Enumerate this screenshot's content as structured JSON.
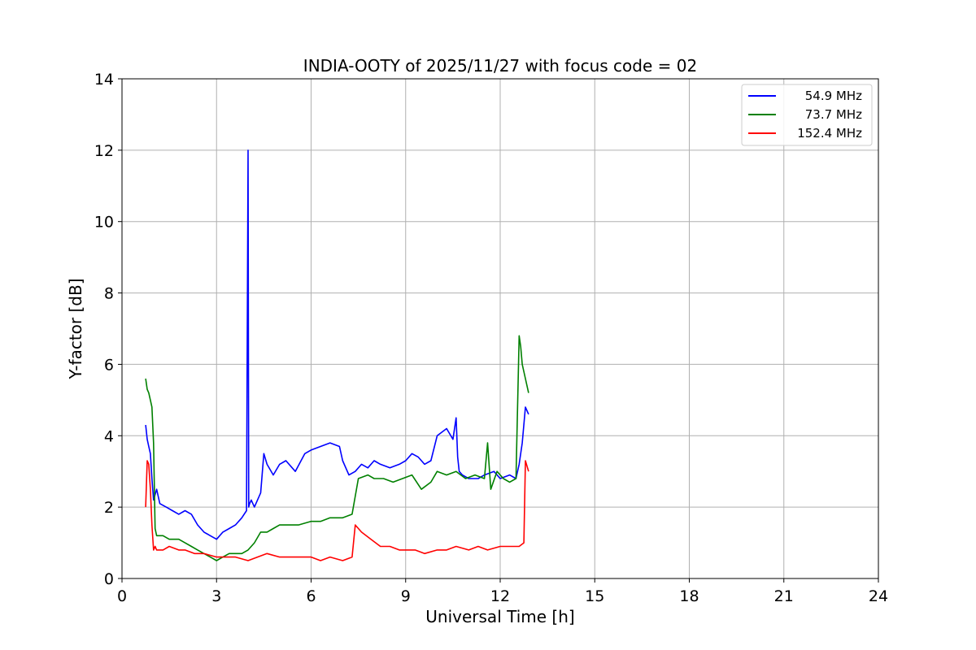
{
  "chart_data": {
    "type": "line",
    "title": "INDIA-OOTY of 2025/11/27 with focus code = 02",
    "xlabel": "Universal Time [h]",
    "ylabel": "Y-factor [dB]",
    "xlim": [
      0,
      24
    ],
    "ylim": [
      0,
      14
    ],
    "xticks": [
      0,
      3,
      6,
      9,
      12,
      15,
      18,
      21,
      24
    ],
    "yticks": [
      0,
      2,
      4,
      6,
      8,
      10,
      12,
      14
    ],
    "grid": true,
    "legend_position": "top-right",
    "series": [
      {
        "name": "54.9 MHz",
        "color": "#0000ff",
        "x": [
          0.75,
          0.8,
          0.85,
          0.9,
          0.95,
          1.0,
          1.1,
          1.2,
          1.4,
          1.6,
          1.8,
          2.0,
          2.2,
          2.4,
          2.6,
          2.8,
          3.0,
          3.2,
          3.4,
          3.6,
          3.8,
          3.95,
          4.0,
          4.02,
          4.05,
          4.1,
          4.2,
          4.4,
          4.5,
          4.6,
          4.8,
          5.0,
          5.2,
          5.5,
          5.8,
          6.0,
          6.3,
          6.6,
          6.9,
          7.0,
          7.2,
          7.4,
          7.6,
          7.8,
          8.0,
          8.2,
          8.5,
          8.8,
          9.0,
          9.2,
          9.4,
          9.6,
          9.8,
          10.0,
          10.3,
          10.5,
          10.6,
          10.65,
          10.7,
          10.8,
          11.0,
          11.3,
          11.5,
          11.8,
          12.0,
          12.3,
          12.5,
          12.6,
          12.7,
          12.8,
          12.9
        ],
        "y": [
          4.3,
          3.9,
          3.7,
          3.5,
          2.8,
          2.2,
          2.5,
          2.1,
          2.0,
          1.9,
          1.8,
          1.9,
          1.8,
          1.5,
          1.3,
          1.2,
          1.1,
          1.3,
          1.4,
          1.5,
          1.7,
          1.9,
          12.0,
          2.0,
          2.1,
          2.2,
          2.0,
          2.4,
          3.5,
          3.2,
          2.9,
          3.2,
          3.3,
          3.0,
          3.5,
          3.6,
          3.7,
          3.8,
          3.7,
          3.3,
          2.9,
          3.0,
          3.2,
          3.1,
          3.3,
          3.2,
          3.1,
          3.2,
          3.3,
          3.5,
          3.4,
          3.2,
          3.3,
          4.0,
          4.2,
          3.9,
          4.5,
          3.4,
          3.0,
          2.9,
          2.8,
          2.8,
          2.9,
          3.0,
          2.8,
          2.9,
          2.8,
          3.2,
          3.8,
          4.8,
          4.6
        ]
      },
      {
        "name": "73.7 MHz",
        "color": "#008000",
        "x": [
          0.75,
          0.8,
          0.85,
          0.9,
          0.95,
          1.0,
          1.05,
          1.1,
          1.3,
          1.5,
          1.8,
          2.0,
          2.2,
          2.4,
          2.6,
          2.8,
          3.0,
          3.2,
          3.4,
          3.6,
          3.8,
          4.0,
          4.2,
          4.4,
          4.6,
          4.8,
          5.0,
          5.3,
          5.6,
          6.0,
          6.3,
          6.6,
          7.0,
          7.3,
          7.5,
          7.8,
          8.0,
          8.3,
          8.6,
          8.9,
          9.2,
          9.5,
          9.8,
          10.0,
          10.3,
          10.6,
          10.9,
          11.2,
          11.5,
          11.6,
          11.7,
          11.9,
          12.1,
          12.3,
          12.5,
          12.6,
          12.65,
          12.7,
          12.8,
          12.9
        ],
        "y": [
          5.6,
          5.3,
          5.2,
          5.0,
          4.8,
          3.8,
          1.4,
          1.2,
          1.2,
          1.1,
          1.1,
          1.0,
          0.9,
          0.8,
          0.7,
          0.6,
          0.5,
          0.6,
          0.7,
          0.7,
          0.7,
          0.8,
          1.0,
          1.3,
          1.3,
          1.4,
          1.5,
          1.5,
          1.5,
          1.6,
          1.6,
          1.7,
          1.7,
          1.8,
          2.8,
          2.9,
          2.8,
          2.8,
          2.7,
          2.8,
          2.9,
          2.5,
          2.7,
          3.0,
          2.9,
          3.0,
          2.8,
          2.9,
          2.8,
          3.8,
          2.5,
          3.0,
          2.8,
          2.7,
          2.8,
          6.8,
          6.5,
          6.0,
          5.6,
          5.2
        ]
      },
      {
        "name": "152.4 MHz",
        "color": "#ff0000",
        "x": [
          0.75,
          0.8,
          0.85,
          0.9,
          0.95,
          1.0,
          1.05,
          1.1,
          1.3,
          1.5,
          1.8,
          2.0,
          2.3,
          2.6,
          3.0,
          3.3,
          3.6,
          4.0,
          4.3,
          4.6,
          5.0,
          5.3,
          5.6,
          6.0,
          6.3,
          6.6,
          7.0,
          7.3,
          7.4,
          7.6,
          7.9,
          8.2,
          8.5,
          8.8,
          9.0,
          9.3,
          9.6,
          10.0,
          10.3,
          10.6,
          11.0,
          11.3,
          11.6,
          12.0,
          12.3,
          12.6,
          12.75,
          12.8,
          12.9
        ],
        "y": [
          2.0,
          3.3,
          3.2,
          2.5,
          1.5,
          0.8,
          0.9,
          0.8,
          0.8,
          0.9,
          0.8,
          0.8,
          0.7,
          0.7,
          0.6,
          0.6,
          0.6,
          0.5,
          0.6,
          0.7,
          0.6,
          0.6,
          0.6,
          0.6,
          0.5,
          0.6,
          0.5,
          0.6,
          1.5,
          1.3,
          1.1,
          0.9,
          0.9,
          0.8,
          0.8,
          0.8,
          0.7,
          0.8,
          0.8,
          0.9,
          0.8,
          0.9,
          0.8,
          0.9,
          0.9,
          0.9,
          1.0,
          3.3,
          3.0
        ]
      }
    ]
  }
}
